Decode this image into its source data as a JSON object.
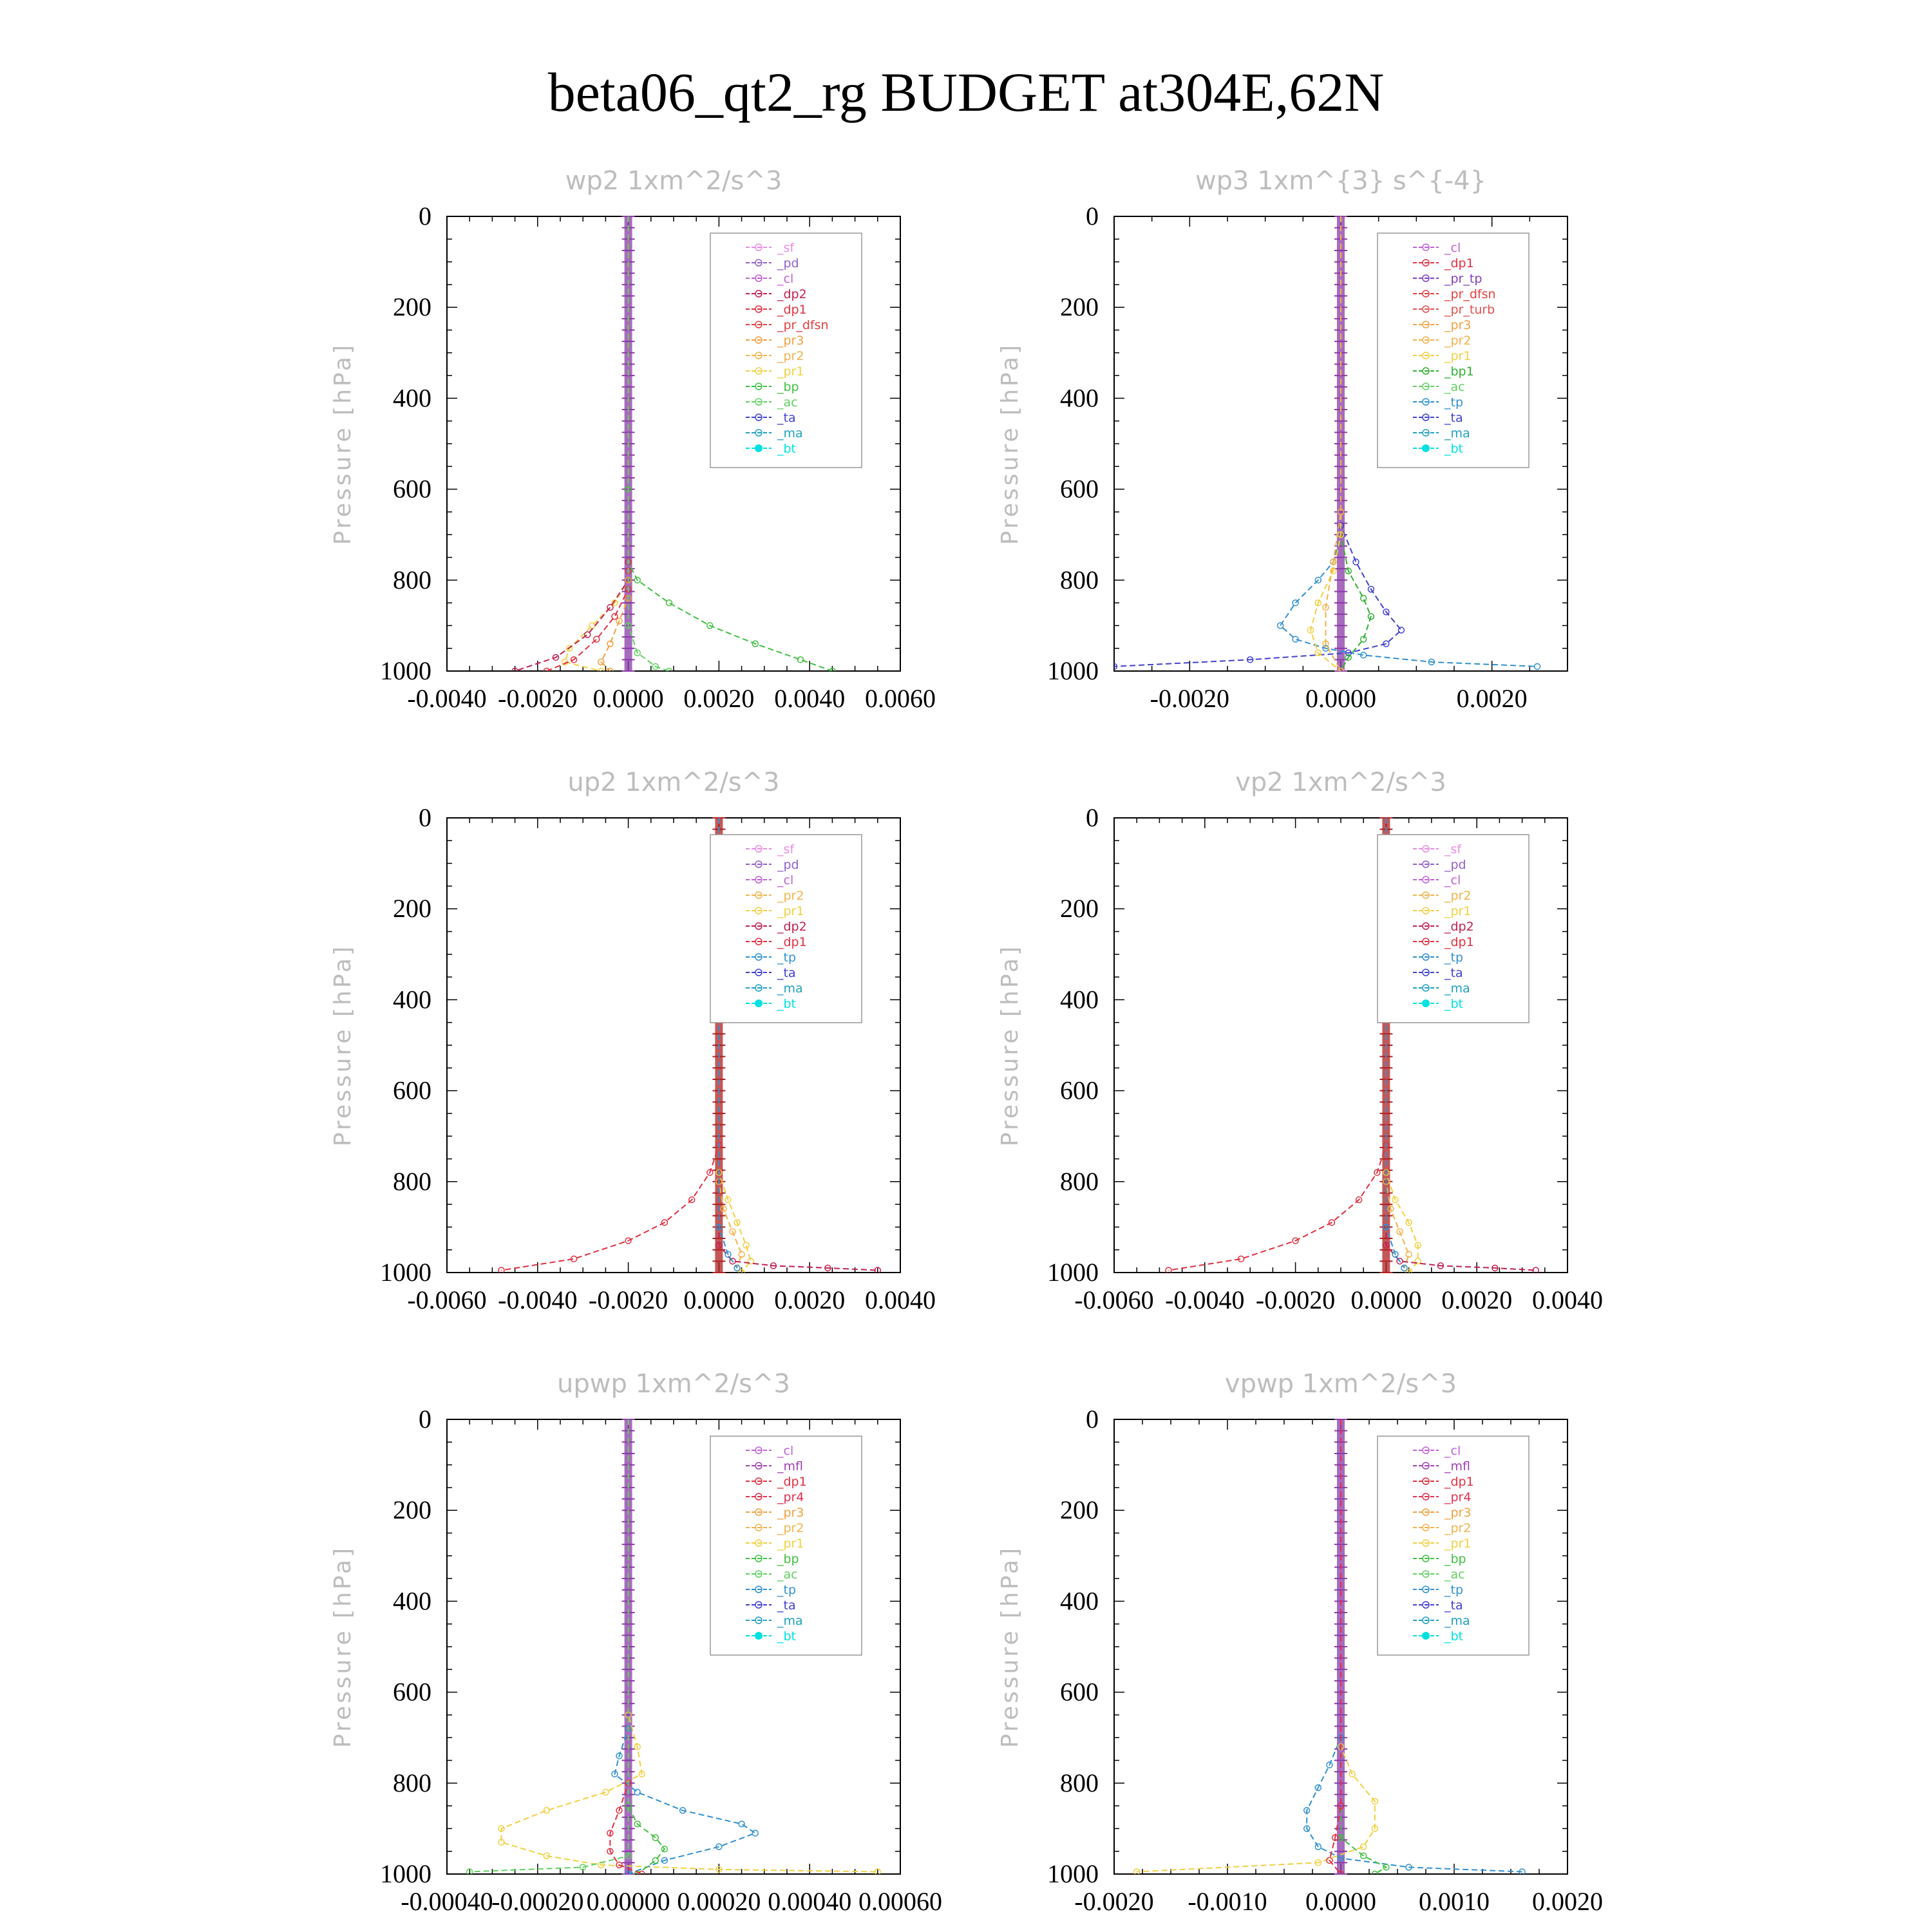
{
  "title": "beta06_qt2_rg  BUDGET at304E,62N",
  "chart_data": [
    {
      "type": "line",
      "title": "wp2  1xm^2/s^3",
      "ylabel": "Pressure [hPa]",
      "xlabel": "",
      "xlim": [
        -0.004,
        0.006
      ],
      "ylim": [
        1000,
        0
      ],
      "xticks": [
        "-0.0040",
        "-0.0020",
        "0.0000",
        "0.0020",
        "0.0040",
        "0.0060"
      ],
      "yticks": [
        "0",
        "200",
        "400",
        "600",
        "800",
        "1000"
      ],
      "legend": [
        "_sf",
        "_pd",
        "_cl",
        "_dp2",
        "_dp1",
        "_pr_dfsn",
        "_pr3",
        "_pr2",
        "_pr1",
        "_bp",
        "_ac",
        "_ta",
        "_ma",
        "_bt"
      ],
      "series": [
        {
          "name": "_bp",
          "x": [
            0,
            0,
            0,
            0.0002,
            0.0009,
            0.0018,
            0.0028,
            0.0038,
            0.0045
          ],
          "y": [
            0,
            600,
            760,
            800,
            850,
            900,
            940,
            975,
            1000
          ]
        },
        {
          "name": "_pr1",
          "x": [
            0,
            0,
            0,
            -0.0003,
            -0.0008,
            -0.0013,
            -0.0014,
            -0.0006
          ],
          "y": [
            0,
            760,
            800,
            850,
            900,
            950,
            980,
            1000
          ]
        },
        {
          "name": "_dp2",
          "x": [
            0,
            0,
            0,
            -0.0004,
            -0.0009,
            -0.0016,
            -0.0025
          ],
          "y": [
            0,
            760,
            800,
            860,
            920,
            970,
            1000
          ]
        },
        {
          "name": "_dp1",
          "x": [
            0,
            0,
            0,
            -0.0003,
            -0.0007,
            -0.0012,
            -0.0018
          ],
          "y": [
            0,
            780,
            820,
            880,
            930,
            975,
            1000
          ]
        },
        {
          "name": "_pr3",
          "x": [
            0,
            0,
            0,
            -0.0002,
            -0.0004,
            -0.0006,
            -0.0004
          ],
          "y": [
            0,
            800,
            840,
            890,
            940,
            980,
            1000
          ]
        },
        {
          "name": "_ac",
          "x": [
            0,
            0,
            0.0002,
            0.0006,
            0.0009
          ],
          "y": [
            0,
            900,
            960,
            990,
            1000
          ]
        }
      ]
    },
    {
      "type": "line",
      "title": "wp3  1xm^{3} s^{-4}",
      "ylabel": "Pressure [hPa]",
      "xlabel": "",
      "xlim": [
        -0.003,
        0.003
      ],
      "ylim": [
        1000,
        0
      ],
      "xticks": [
        "-0.0020",
        "0.0000",
        "0.0020"
      ],
      "yticks": [
        "0",
        "200",
        "400",
        "600",
        "800",
        "1000"
      ],
      "legend": [
        "_cl",
        "_dp1",
        "_pr_tp",
        "_pr_dfsn",
        "_pr_turb",
        "_pr3",
        "_pr2",
        "_pr1",
        "_bp1",
        "_ac",
        "_tp",
        "_ta",
        "_ma",
        "_bt"
      ],
      "series": [
        {
          "name": "_tp",
          "x": [
            0,
            0,
            -0.0001,
            -0.0003,
            -0.0006,
            -0.0008,
            -0.0006,
            -0.0002,
            0.0003,
            0.0012,
            0.0026
          ],
          "y": [
            0,
            700,
            760,
            800,
            850,
            900,
            930,
            950,
            965,
            980,
            990
          ]
        },
        {
          "name": "_ta",
          "x": [
            0,
            0,
            0.0002,
            0.0004,
            0.0006,
            0.0008,
            0.0006,
            0.0001,
            -0.0012,
            -0.003
          ],
          "y": [
            0,
            680,
            760,
            820,
            870,
            910,
            940,
            960,
            975,
            990
          ]
        },
        {
          "name": "_bp1",
          "x": [
            0,
            0,
            0.0001,
            0.0003,
            0.0004,
            0.0003,
            0.0001,
            0
          ],
          "y": [
            0,
            700,
            780,
            840,
            880,
            930,
            970,
            1000
          ]
        },
        {
          "name": "_pr1",
          "x": [
            0,
            0,
            -0.0001,
            -0.0003,
            -0.0004,
            -0.0003,
            0
          ],
          "y": [
            0,
            700,
            780,
            850,
            910,
            960,
            1000
          ]
        },
        {
          "name": "_pr2",
          "x": [
            0,
            0,
            -0.0001,
            -0.0002,
            -0.0002,
            0
          ],
          "y": [
            0,
            650,
            760,
            860,
            940,
            1000
          ]
        }
      ]
    },
    {
      "type": "line",
      "title": "up2  1xm^2/s^3",
      "ylabel": "Pressure [hPa]",
      "xlabel": "",
      "xlim": [
        -0.006,
        0.004
      ],
      "ylim": [
        1000,
        0
      ],
      "xticks": [
        "-0.0060",
        "-0.0040",
        "-0.0020",
        "0.0000",
        "0.0020",
        "0.0040"
      ],
      "yticks": [
        "0",
        "200",
        "400",
        "600",
        "800",
        "1000"
      ],
      "legend": [
        "_sf",
        "_pd",
        "_cl",
        "_pr2",
        "_pr1",
        "_dp2",
        "_dp1",
        "_tp",
        "_ta",
        "_ma",
        "_bt"
      ],
      "series": [
        {
          "name": "_dp1",
          "x": [
            0,
            0,
            -0.0002,
            -0.0006,
            -0.0012,
            -0.002,
            -0.0032,
            -0.0048
          ],
          "y": [
            0,
            720,
            780,
            840,
            890,
            930,
            970,
            995
          ]
        },
        {
          "name": "_pr1",
          "x": [
            0,
            0,
            0.0002,
            0.0004,
            0.0006,
            0.0007,
            0.0005
          ],
          "y": [
            0,
            780,
            840,
            890,
            940,
            975,
            1000
          ]
        },
        {
          "name": "_pr2",
          "x": [
            0,
            0,
            0.0001,
            0.0003,
            0.0005,
            0.0004
          ],
          "y": [
            0,
            800,
            860,
            910,
            960,
            990
          ]
        },
        {
          "name": "_dp2",
          "x": [
            0,
            0,
            0.0003,
            0.0012,
            0.0024,
            0.0035
          ],
          "y": [
            0,
            940,
            975,
            985,
            990,
            995
          ]
        },
        {
          "name": "_tp",
          "x": [
            0,
            0,
            0.0002,
            0.0004
          ],
          "y": [
            0,
            900,
            960,
            990
          ]
        }
      ]
    },
    {
      "type": "line",
      "title": "vp2  1xm^2/s^3",
      "ylabel": "Pressure [hPa]",
      "xlabel": "",
      "xlim": [
        -0.006,
        0.004
      ],
      "ylim": [
        1000,
        0
      ],
      "xticks": [
        "-0.0060",
        "-0.0040",
        "-0.0020",
        "0.0000",
        "0.0020",
        "0.0040"
      ],
      "yticks": [
        "0",
        "200",
        "400",
        "600",
        "800",
        "1000"
      ],
      "legend": [
        "_sf",
        "_pd",
        "_cl",
        "_pr2",
        "_pr1",
        "_dp2",
        "_dp1",
        "_tp",
        "_ta",
        "_ma",
        "_bt"
      ],
      "series": [
        {
          "name": "_dp1",
          "x": [
            0,
            0,
            -0.0002,
            -0.0006,
            -0.0012,
            -0.002,
            -0.0032,
            -0.0048
          ],
          "y": [
            0,
            720,
            780,
            840,
            890,
            930,
            970,
            995
          ]
        },
        {
          "name": "_pr1",
          "x": [
            0,
            0,
            0.0002,
            0.0005,
            0.0007,
            0.0007,
            0.0005
          ],
          "y": [
            0,
            780,
            840,
            890,
            940,
            975,
            1000
          ]
        },
        {
          "name": "_pr2",
          "x": [
            0,
            0,
            0.0001,
            0.0003,
            0.0005,
            0.0004
          ],
          "y": [
            0,
            800,
            860,
            910,
            960,
            990
          ]
        },
        {
          "name": "_dp2",
          "x": [
            0,
            0,
            0.0003,
            0.0012,
            0.0024,
            0.0033
          ],
          "y": [
            0,
            940,
            975,
            985,
            990,
            995
          ]
        },
        {
          "name": "_tp",
          "x": [
            0,
            0,
            0.0002,
            0.0004
          ],
          "y": [
            0,
            900,
            960,
            990
          ]
        }
      ]
    },
    {
      "type": "line",
      "title": "upwp  1xm^2/s^3",
      "ylabel": "Pressure [hPa]",
      "xlabel": "",
      "xlim": [
        -0.0004,
        0.0006
      ],
      "ylim": [
        1000,
        0
      ],
      "xticks": [
        "-0.00040",
        "-0.00020",
        "0.00000",
        "0.00020",
        "0.00040",
        "0.00060"
      ],
      "yticks": [
        "0",
        "200",
        "400",
        "600",
        "800",
        "1000"
      ],
      "legend": [
        "_cl",
        "_mfl",
        "_dp1",
        "_pr4",
        "_pr3",
        "_pr2",
        "_pr1",
        "_bp",
        "_ac",
        "_tp",
        "_ta",
        "_ma",
        "_bt"
      ],
      "series": [
        {
          "name": "_pr1",
          "x": [
            0,
            0,
            2e-05,
            3e-05,
            -5e-05,
            -0.00018,
            -0.00028,
            -0.00028,
            -0.00018,
            -6e-05,
            0.0002,
            0.00055
          ],
          "y": [
            0,
            650,
            720,
            780,
            820,
            860,
            900,
            930,
            960,
            980,
            990,
            995
          ]
        },
        {
          "name": "_tp",
          "x": [
            0,
            0,
            -2e-05,
            -3e-05,
            2e-05,
            0.00012,
            0.00025,
            0.00028,
            0.0002,
            8e-05,
            0
          ],
          "y": [
            0,
            680,
            740,
            780,
            820,
            860,
            890,
            910,
            940,
            970,
            1000
          ]
        },
        {
          "name": "_bp",
          "x": [
            0,
            0,
            2e-05,
            6e-05,
            8e-05,
            6e-05,
            2e-05
          ],
          "y": [
            0,
            850,
            890,
            920,
            945,
            970,
            1000
          ]
        },
        {
          "name": "_dp1",
          "x": [
            0,
            0,
            -2e-05,
            -4e-05,
            -4e-05,
            -2e-05,
            3e-05
          ],
          "y": [
            0,
            800,
            860,
            910,
            950,
            980,
            1000
          ]
        },
        {
          "name": "_ac",
          "x": [
            0,
            0,
            -0.0001,
            -0.00035
          ],
          "y": [
            0,
            960,
            985,
            995
          ]
        }
      ]
    },
    {
      "type": "line",
      "title": "vpwp  1xm^2/s^3",
      "ylabel": "Pressure [hPa]",
      "xlabel": "",
      "xlim": [
        -0.002,
        0.002
      ],
      "ylim": [
        1000,
        0
      ],
      "xticks": [
        "-0.0020",
        "-0.0010",
        "0.0000",
        "0.0010",
        "0.0020"
      ],
      "yticks": [
        "0",
        "200",
        "400",
        "600",
        "800",
        "1000"
      ],
      "legend": [
        "_cl",
        "_mfl",
        "_dp1",
        "_pr4",
        "_pr3",
        "_pr2",
        "_pr1",
        "_bp",
        "_ac",
        "_tp",
        "_ta",
        "_ma",
        "_bt"
      ],
      "series": [
        {
          "name": "_tp",
          "x": [
            0,
            0,
            -0.0001,
            -0.0002,
            -0.0003,
            -0.0003,
            -0.0002,
            0,
            0.0006,
            0.0016
          ],
          "y": [
            0,
            700,
            760,
            810,
            860,
            900,
            940,
            965,
            985,
            995
          ]
        },
        {
          "name": "_pr1",
          "x": [
            0,
            0,
            0.0001,
            0.0003,
            0.0003,
            0.0002,
            -0.0002,
            -0.0018
          ],
          "y": [
            0,
            720,
            780,
            840,
            900,
            940,
            975,
            995
          ]
        },
        {
          "name": "_bp",
          "x": [
            0,
            0,
            0.0002,
            0.0004,
            0.0003
          ],
          "y": [
            0,
            920,
            960,
            985,
            1000
          ]
        },
        {
          "name": "_dp1",
          "x": [
            0,
            0,
            -5e-05,
            -0.0001,
            0
          ],
          "y": [
            0,
            850,
            920,
            970,
            1000
          ]
        }
      ]
    }
  ],
  "colors": {
    "_sf": "#e98be0",
    "_pd": "#9060c8",
    "_cl": "#c060d8",
    "_mfl": "#a040b0",
    "_dp2": "#c02050",
    "_dp1": "#e03040",
    "_pr_tp": "#8040c0",
    "_pr_dfsn": "#e04040",
    "_pr_turb": "#e05050",
    "_pr4": "#e03050",
    "_pr3": "#f0a040",
    "_pr2": "#f2b24a",
    "_pr1": "#f0d040",
    "_bp": "#40c040",
    "_bp1": "#30b030",
    "_ac": "#60d060",
    "_tp": "#3090d0",
    "_ta": "#4040d0",
    "_ma": "#20a0c0",
    "_bt": "#00e0e0",
    "vertical_bar": "#8a3aa8",
    "vertical_bar_alt": "#b02020"
  }
}
